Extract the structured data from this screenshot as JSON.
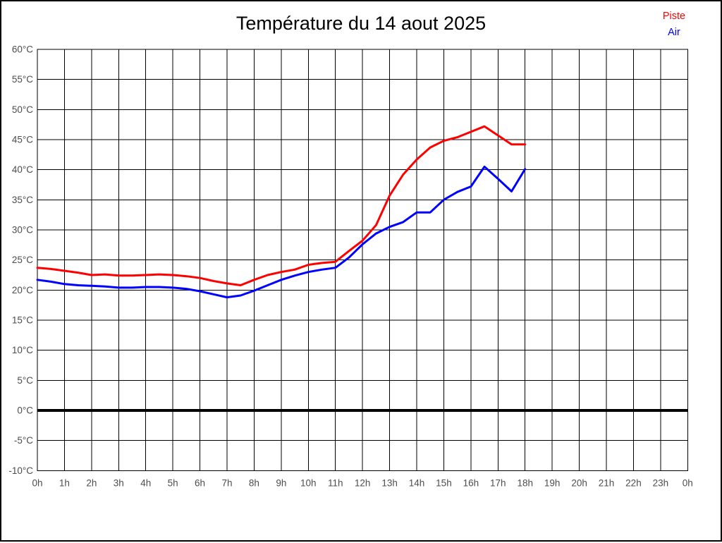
{
  "title": "Température du 14 aout 2025",
  "legend": {
    "piste_label": "Piste",
    "air_label": "Air"
  },
  "chart_data": {
    "type": "line",
    "title": "Température du 14 aout 2025",
    "xlabel": "",
    "ylabel": "",
    "xlim_hours": [
      0,
      24
    ],
    "ylim": [
      -10,
      60
    ],
    "y_tick_step": 5,
    "y_tick_suffix": "°C",
    "x_tick_labels": [
      "0h",
      "1h",
      "2h",
      "3h",
      "4h",
      "5h",
      "6h",
      "7h",
      "8h",
      "9h",
      "10h",
      "11h",
      "12h",
      "13h",
      "14h",
      "15h",
      "16h",
      "17h",
      "18h",
      "19h",
      "20h",
      "21h",
      "22h",
      "23h",
      "0h"
    ],
    "grid": true,
    "zero_line_emphasis": true,
    "legend_position": "top-right",
    "x": [
      0,
      0.5,
      1,
      1.5,
      2,
      2.5,
      3,
      3.5,
      4,
      4.5,
      5,
      5.5,
      6,
      6.5,
      7,
      7.5,
      8,
      8.5,
      9,
      9.5,
      10,
      10.5,
      11,
      11.5,
      12,
      12.5,
      13,
      13.5,
      14,
      14.5,
      15,
      15.5,
      16,
      16.5,
      17,
      17.5,
      18
    ],
    "series": [
      {
        "name": "Piste",
        "color": "#ff0000",
        "values": [
          23.7,
          23.5,
          23.2,
          22.9,
          22.5,
          22.6,
          22.4,
          22.4,
          22.5,
          22.6,
          22.5,
          22.3,
          22.0,
          21.5,
          21.1,
          20.8,
          21.7,
          22.5,
          23.0,
          23.4,
          24.2,
          24.5,
          24.7,
          26.5,
          28.2,
          30.8,
          35.7,
          39.2,
          41.7,
          43.7,
          44.8,
          45.4,
          46.3,
          47.2,
          45.7,
          44.2,
          44.2
        ]
      },
      {
        "name": "Air",
        "color": "#0000ff",
        "values": [
          21.7,
          21.4,
          21.0,
          20.8,
          20.7,
          20.6,
          20.4,
          20.4,
          20.5,
          20.5,
          20.4,
          20.2,
          19.8,
          19.3,
          18.8,
          19.1,
          19.9,
          20.8,
          21.7,
          22.4,
          23.0,
          23.4,
          23.7,
          25.4,
          27.6,
          29.4,
          30.5,
          31.3,
          32.9,
          32.9,
          35.0,
          36.3,
          37.2,
          40.5,
          38.5,
          36.4,
          40.1
        ]
      }
    ]
  }
}
